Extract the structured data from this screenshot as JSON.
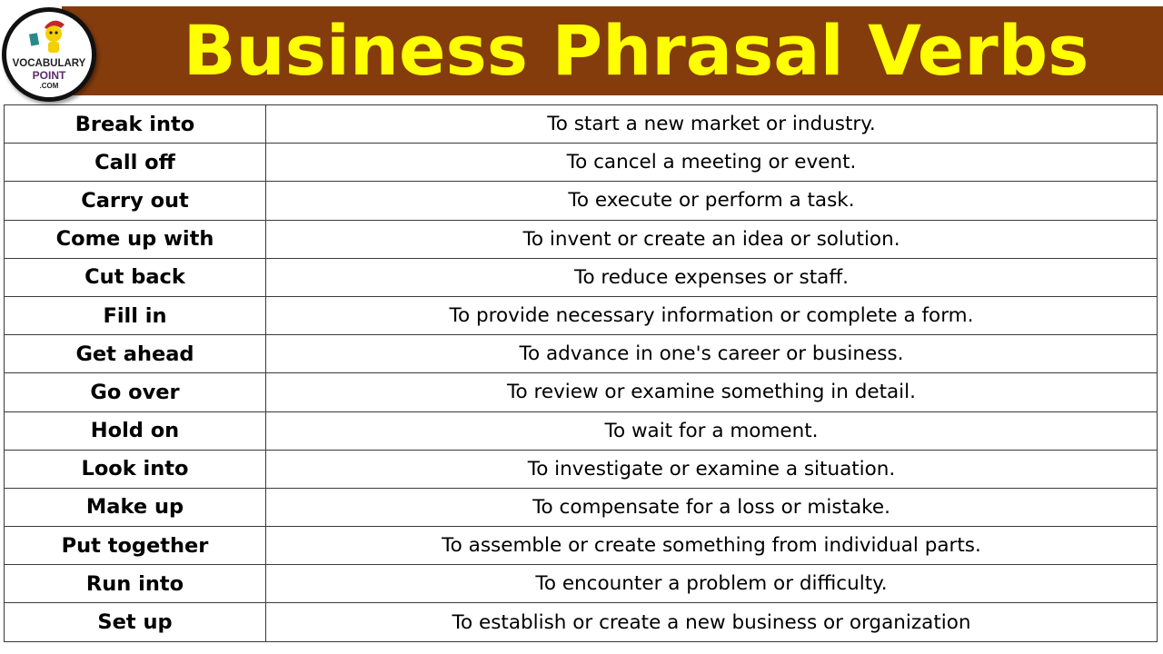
{
  "header": {
    "title": "Business Phrasal Verbs",
    "banner_color": "#843C0C",
    "title_color": "#FFFF00"
  },
  "logo": {
    "line1": "VOCABULARY",
    "line2": "POINT",
    "line3": ".COM"
  },
  "rows": [
    {
      "term": "Break into",
      "definition": "To start a new market or industry."
    },
    {
      "term": "Call off",
      "definition": "To cancel a meeting or event."
    },
    {
      "term": "Carry out",
      "definition": "To execute or perform a task."
    },
    {
      "term": "Come up with",
      "definition": "To invent or create an idea or solution."
    },
    {
      "term": "Cut back",
      "definition": "To reduce expenses or staff."
    },
    {
      "term": "Fill in",
      "definition": "To provide necessary information or complete a form."
    },
    {
      "term": "Get ahead",
      "definition": "To advance in one's career or business."
    },
    {
      "term": "Go over",
      "definition": "To review or examine something in detail."
    },
    {
      "term": "Hold on",
      "definition": "To wait for a moment."
    },
    {
      "term": "Look into",
      "definition": "To investigate or examine a situation."
    },
    {
      "term": "Make up",
      "definition": "To compensate for a loss or mistake."
    },
    {
      "term": "Put together",
      "definition": "To assemble or create something from individual parts."
    },
    {
      "term": "Run into",
      "definition": "To encounter a problem or difficulty."
    },
    {
      "term": "Set up",
      "definition": "To establish or create a new business or organization"
    }
  ]
}
